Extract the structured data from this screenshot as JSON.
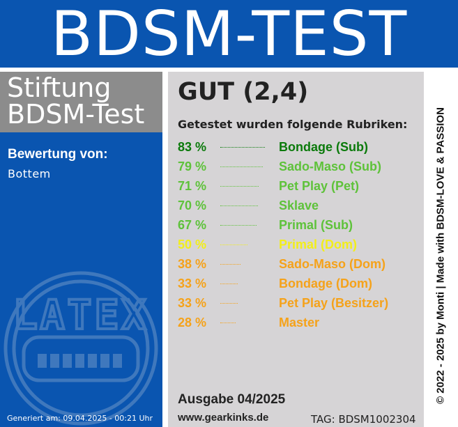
{
  "header": {
    "title": "BDSM-TEST"
  },
  "sidebar": {
    "org_line1": "Stiftung",
    "org_line2": "BDSM-Test",
    "rating_label": "Bewertung von:",
    "rating_user": "Bottem",
    "seal_text": "LATEX",
    "generated": "Generiert am: 09.04.2025 - 00:21 Uhr"
  },
  "main": {
    "grade": "GUT (2,4)",
    "intro": "Getestet wurden folgende Rubriken:",
    "results": [
      {
        "percent": "83 %",
        "category": "Bondage (Sub)",
        "color": "#0b7a0b",
        "value": 83
      },
      {
        "percent": "79 %",
        "category": "Sado-Maso (Sub)",
        "color": "#5ec23a",
        "value": 79
      },
      {
        "percent": "71 %",
        "category": "Pet Play (Pet)",
        "color": "#5ec23a",
        "value": 71
      },
      {
        "percent": "70 %",
        "category": "Sklave",
        "color": "#5ec23a",
        "value": 70
      },
      {
        "percent": "67 %",
        "category": "Primal (Sub)",
        "color": "#5ec23a",
        "value": 67
      },
      {
        "percent": "50 %",
        "category": "Primal (Dom)",
        "color": "#f2ee1a",
        "value": 50
      },
      {
        "percent": "38 %",
        "category": "Sado-Maso (Dom)",
        "color": "#f5a21a",
        "value": 38
      },
      {
        "percent": "33 %",
        "category": "Bondage (Dom)",
        "color": "#f5a21a",
        "value": 33
      },
      {
        "percent": "33 %",
        "category": "Pet Play (Besitzer)",
        "color": "#f5a21a",
        "value": 33
      },
      {
        "percent": "28 %",
        "category": "Master",
        "color": "#f5a21a",
        "value": 28
      }
    ],
    "edition": "Ausgabe 04/2025",
    "website": "www.gearkinks.de",
    "tag": "TAG: BDSM1002304"
  },
  "vertical_text": "© 2022 - 2025 by Monti | Made with BDSM-LOVE & PASSION"
}
